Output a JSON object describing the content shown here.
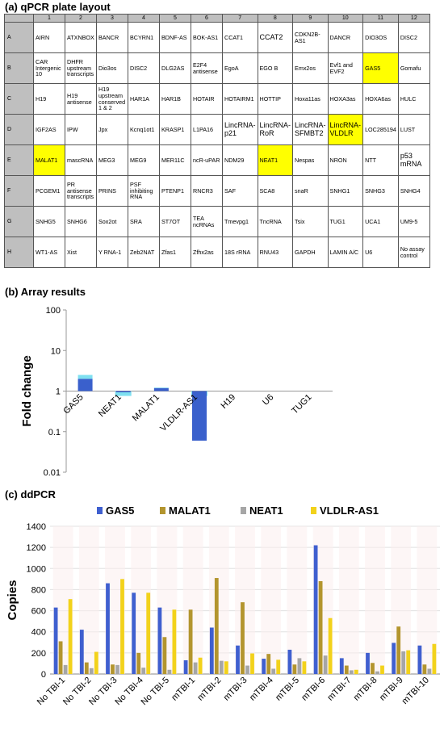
{
  "sections": {
    "a_title": "(a) qPCR plate layout",
    "b_title": "(b) Array results",
    "c_title": "(c) ddPCR"
  },
  "plate": {
    "columns": [
      "1",
      "2",
      "3",
      "4",
      "5",
      "6",
      "7",
      "8",
      "9",
      "10",
      "11",
      "12"
    ],
    "highlight_color": "#ffff00",
    "rows": [
      {
        "label": "A",
        "cells": [
          {
            "text": "AIRN"
          },
          {
            "text": "ATXNBOX"
          },
          {
            "text": "BANCR"
          },
          {
            "text": "BCYRN1"
          },
          {
            "text": "BDNF-AS"
          },
          {
            "text": "BOK-AS1"
          },
          {
            "text": "CCAT1"
          },
          {
            "text": "CCAT2",
            "big": true
          },
          {
            "text": "CDKN2B-AS1"
          },
          {
            "text": "DANCR"
          },
          {
            "text": "DIO3OS"
          },
          {
            "text": "DISC2"
          }
        ]
      },
      {
        "label": "B",
        "cells": [
          {
            "text": "CAR Intergenic 10"
          },
          {
            "text": "DHFR upstream transcripts"
          },
          {
            "text": "Dio3os"
          },
          {
            "text": "DISC2"
          },
          {
            "text": "DLG2AS"
          },
          {
            "text": "E2F4 antisense"
          },
          {
            "text": "EgoA"
          },
          {
            "text": "EGO B"
          },
          {
            "text": "Emx2os"
          },
          {
            "text": "Evf1 and EVF2"
          },
          {
            "text": "GAS5",
            "hl": true
          },
          {
            "text": "Gomafu"
          }
        ]
      },
      {
        "label": "C",
        "cells": [
          {
            "text": "H19"
          },
          {
            "text": "H19 antisense"
          },
          {
            "text": "H19 upstream conserved 1 & 2"
          },
          {
            "text": "HAR1A"
          },
          {
            "text": "HAR1B"
          },
          {
            "text": "HOTAIR"
          },
          {
            "text": "HOTAIRM1"
          },
          {
            "text": "HOTTIP"
          },
          {
            "text": "Hoxa11as"
          },
          {
            "text": "HOXA3as"
          },
          {
            "text": "HOXA6as"
          },
          {
            "text": "HULC"
          }
        ]
      },
      {
        "label": "D",
        "cells": [
          {
            "text": "IGF2AS"
          },
          {
            "text": "IPW"
          },
          {
            "text": "Jpx"
          },
          {
            "text": "Kcnq1ot1"
          },
          {
            "text": "KRASP1"
          },
          {
            "text": "L1PA16"
          },
          {
            "text": "LincRNA-p21",
            "big": true
          },
          {
            "text": "LincRNA-RoR",
            "big": true
          },
          {
            "text": "LincRNA-SFMBT2",
            "big": true
          },
          {
            "text": "LincRNA-VLDLR",
            "big": true,
            "hl": true
          },
          {
            "text": "LOC285194"
          },
          {
            "text": "LUST"
          }
        ]
      },
      {
        "label": "E",
        "cells": [
          {
            "text": "MALAT1",
            "hl": true
          },
          {
            "text": "mascRNA"
          },
          {
            "text": "MEG3"
          },
          {
            "text": "MEG9"
          },
          {
            "text": "MER11C"
          },
          {
            "text": "ncR-uPAR"
          },
          {
            "text": "NDM29"
          },
          {
            "text": "NEAT1",
            "hl": true
          },
          {
            "text": "Nespas"
          },
          {
            "text": "NRON"
          },
          {
            "text": "NTT"
          },
          {
            "text": "p53 mRNA",
            "big": true
          }
        ]
      },
      {
        "label": "F",
        "cells": [
          {
            "text": "PCGEM1"
          },
          {
            "text": "PR antisense transcripts"
          },
          {
            "text": "PRINS"
          },
          {
            "text": "PSF inhibiting RNA"
          },
          {
            "text": "PTENP1"
          },
          {
            "text": "RNCR3"
          },
          {
            "text": "SAF"
          },
          {
            "text": "SCA8"
          },
          {
            "text": "snaR"
          },
          {
            "text": "SNHG1"
          },
          {
            "text": "SNHG3"
          },
          {
            "text": "SNHG4"
          }
        ]
      },
      {
        "label": "G",
        "cells": [
          {
            "text": "SNHG5"
          },
          {
            "text": "SNHG6"
          },
          {
            "text": "Sox2ot"
          },
          {
            "text": "SRA"
          },
          {
            "text": "ST7OT"
          },
          {
            "text": "TEA ncRNAs"
          },
          {
            "text": "Tmevpg1"
          },
          {
            "text": "TncRNA"
          },
          {
            "text": "Tsix"
          },
          {
            "text": "TUG1"
          },
          {
            "text": "UCA1"
          },
          {
            "text": "UM9-5"
          }
        ]
      },
      {
        "label": "H",
        "cells": [
          {
            "text": "WT1-AS"
          },
          {
            "text": "Xist"
          },
          {
            "text": "Y RNA-1"
          },
          {
            "text": "Zeb2NAT"
          },
          {
            "text": "Zfas1"
          },
          {
            "text": "Zfhx2as"
          },
          {
            "text": "18S rRNA"
          },
          {
            "text": "RNU43"
          },
          {
            "text": "GAPDH"
          },
          {
            "text": "LAMIN A/C"
          },
          {
            "text": "U6"
          },
          {
            "text": "No assay control"
          }
        ]
      }
    ]
  },
  "chart_data": [
    {
      "type": "bar",
      "title": "",
      "ylabel": "Fold change",
      "xlabel": "",
      "yscale": "log",
      "ylim": [
        0.01,
        100
      ],
      "yticks": [
        "0.01",
        "0.1",
        "1",
        "10",
        "100"
      ],
      "categories": [
        "GAS5",
        "NEAT1",
        "MALAT1",
        "VLDLR-AS1",
        "H19",
        "U6",
        "TUG1"
      ],
      "values": [
        2.0,
        0.98,
        1.18,
        0.06,
        1,
        1,
        1
      ],
      "error_upper": [
        2.5,
        1.0,
        1.22,
        1.0,
        1,
        1,
        1
      ],
      "bar_color": "#3a60cc",
      "error_color": "#7fe0f0",
      "grid": false
    },
    {
      "type": "bar",
      "title": "",
      "ylabel": "Copies",
      "xlabel": "",
      "ylim": [
        0,
        1400
      ],
      "yticks": [
        "0",
        "200",
        "400",
        "600",
        "800",
        "1000",
        "1200",
        "1400"
      ],
      "categories": [
        "No TBI-1",
        "No TBI-2",
        "No TBI-3",
        "No TBI-4",
        "No TBI-5",
        "mTBI-1",
        "mTBI-2",
        "mTBI-3",
        "mTBI-4",
        "mTBI-5",
        "mTBI-6",
        "mTBI-7",
        "mTBI-8",
        "mTBI-9",
        "mTBI-10"
      ],
      "series": [
        {
          "name": "GAS5",
          "color": "#3f5fcf",
          "values": [
            630,
            420,
            860,
            770,
            630,
            130,
            440,
            270,
            145,
            230,
            1220,
            150,
            200,
            295,
            270
          ]
        },
        {
          "name": "MALAT1",
          "color": "#b3952e",
          "values": [
            310,
            110,
            90,
            200,
            350,
            610,
            910,
            680,
            190,
            90,
            880,
            80,
            105,
            450,
            90
          ]
        },
        {
          "name": "NEAT1",
          "color": "#a6a6a6",
          "values": [
            85,
            55,
            85,
            60,
            40,
            110,
            125,
            80,
            50,
            150,
            175,
            35,
            25,
            215,
            50
          ]
        },
        {
          "name": "VLDLR-AS1",
          "color": "#f2d21b",
          "values": [
            710,
            210,
            900,
            770,
            610,
            155,
            120,
            195,
            135,
            120,
            530,
            40,
            80,
            225,
            285
          ]
        }
      ],
      "legend": "top",
      "grid": true
    }
  ]
}
